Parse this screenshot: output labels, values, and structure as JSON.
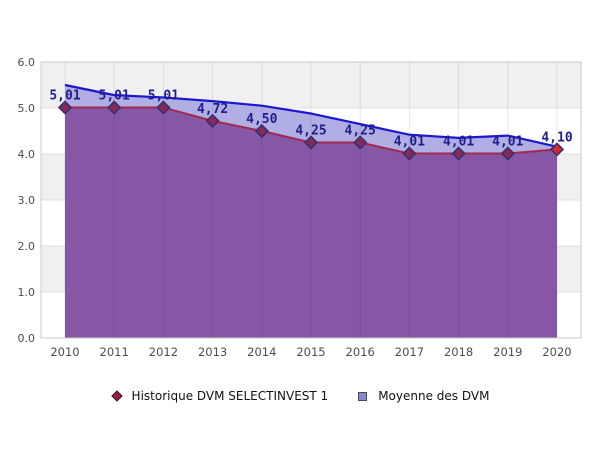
{
  "chart_data": {
    "type": "area",
    "title": "",
    "x": [
      "2010",
      "2011",
      "2012",
      "2013",
      "2014",
      "2015",
      "2016",
      "2017",
      "2018",
      "2019",
      "2020"
    ],
    "ylim": [
      0,
      6
    ],
    "ytick_labels": [
      "0.0",
      "1.0",
      "2.0",
      "3.0",
      "4.0",
      "5.0",
      "6.0"
    ],
    "grid": {
      "alternating_bands": true,
      "band_color": "#f0f0f0",
      "hgrid_color": "#e0e0e0",
      "vgrid_overlay_color": "rgba(50,25,80,0.10)",
      "border_color": "#c8c8c8"
    },
    "legend_position": "bottom-center",
    "series": [
      {
        "name": "Historique DVM SELECTINVEST 1",
        "type": "area-line-markers",
        "values": [
          5.01,
          5.01,
          5.01,
          4.72,
          4.5,
          4.25,
          4.25,
          4.01,
          4.01,
          4.01,
          4.1
        ],
        "labels": [
          "5,01",
          "5,01",
          "5,01",
          "4,72",
          "4,50",
          "4,25",
          "4,25",
          "4,01",
          "4,01",
          "4,01",
          "4,10"
        ],
        "line_color": "#a22950",
        "fill_color": "#8557a5",
        "marker": "diamond",
        "marker_fill": "#842a56",
        "marker_stroke": "#3a2f6e",
        "last_marker_fill": "#d32b2b",
        "label_color": "#1e1e8c"
      },
      {
        "name": "Moyenne des DVM",
        "type": "area",
        "values_estimated": true,
        "values": [
          5.5,
          5.28,
          5.23,
          5.15,
          5.05,
          4.88,
          4.65,
          4.42,
          4.35,
          4.4,
          4.16
        ],
        "line_color": "#1b18d0",
        "fill_color": "#b0aee2"
      }
    ],
    "axis_text_color": "#4d4d4d"
  },
  "legend": {
    "items": [
      {
        "marker": "diamond",
        "marker_color": "#992038",
        "marker_border": "#33163a"
      },
      {
        "marker": "square",
        "marker_color": "#8a89ce",
        "marker_border": "#4a4a52"
      }
    ]
  }
}
